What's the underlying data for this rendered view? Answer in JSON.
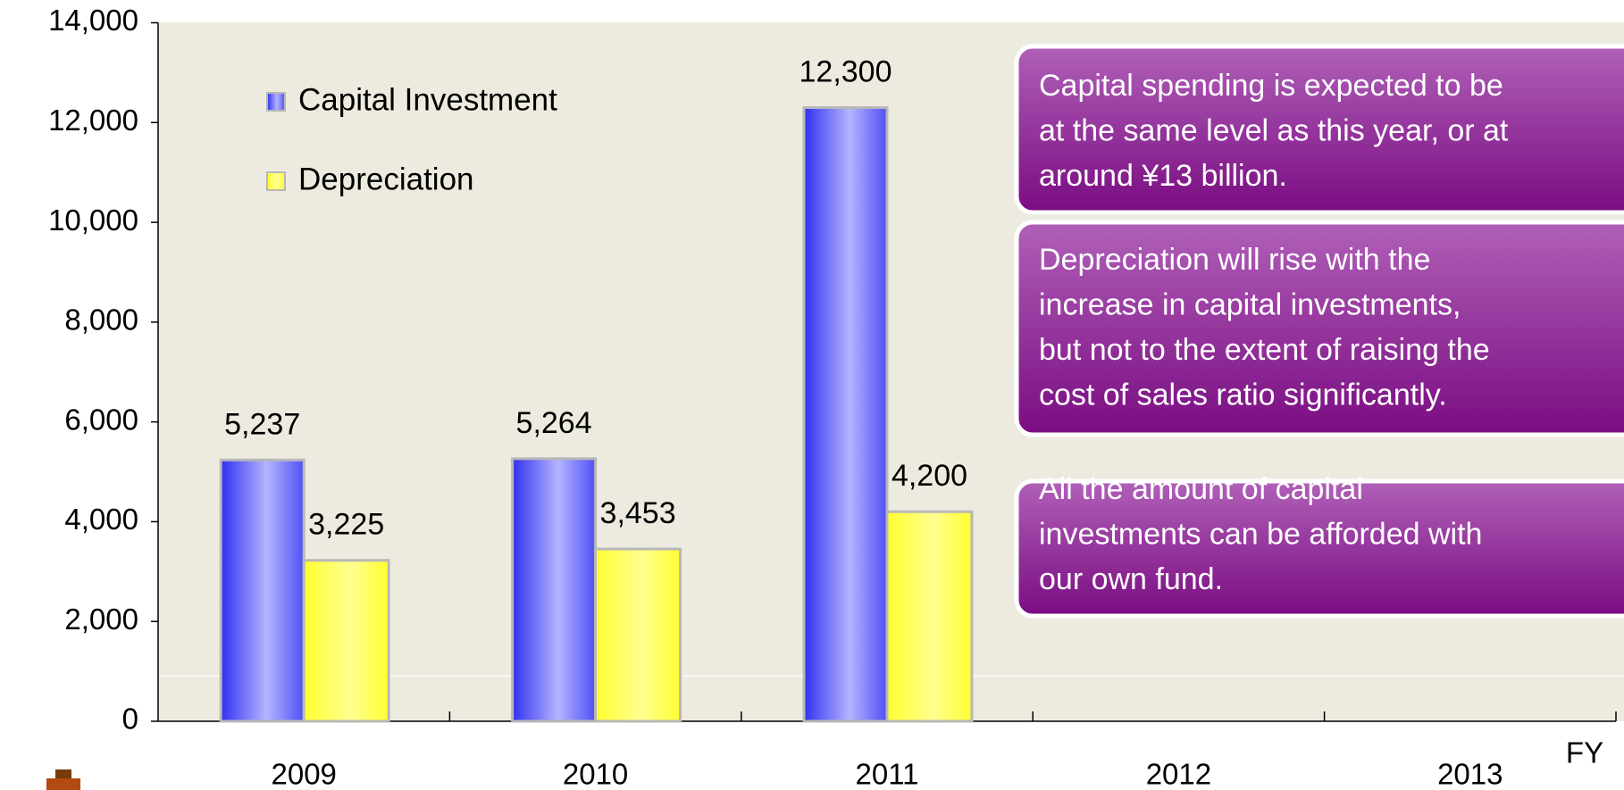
{
  "chart_data": {
    "type": "bar",
    "categories": [
      "2009",
      "2010",
      "2011",
      "2012",
      "2013"
    ],
    "x_label": "FY",
    "series": [
      {
        "name": "Capital Investment",
        "color": "#3b3bf5",
        "values": [
          5237,
          5264,
          12300,
          null,
          null
        ],
        "value_labels": [
          "5,237",
          "5,264",
          "12,300",
          null,
          null
        ]
      },
      {
        "name": "Depreciation",
        "color": "#ffff33",
        "values": [
          3225,
          3453,
          4200,
          null,
          null
        ],
        "value_labels": [
          "3,225",
          "3,453",
          "4,200",
          null,
          null
        ]
      }
    ],
    "ylim": [
      0,
      14000
    ],
    "yticks": [
      0,
      {
        "value": 2000,
        "label": "2,000"
      },
      {
        "value": 4000,
        "label": "4,000"
      },
      {
        "value": 6000,
        "label": "6,000"
      },
      {
        "value": 8000,
        "label": "8,000"
      },
      {
        "value": 10000,
        "label": "10,000"
      },
      {
        "value": 12000,
        "label": "12,000"
      },
      {
        "value": 14000,
        "label": "14,000"
      }
    ],
    "annotations": [
      {
        "lines": [
          "Capital spending is expected to be",
          "at the same level as this year, or at",
          "around ¥13 billion."
        ]
      },
      {
        "lines": [
          "Depreciation will rise with the",
          "increase in capital investments,",
          "but not to the extent of raising the",
          "cost of sales ratio significantly."
        ]
      },
      {
        "lines": [
          "All the amount of capital",
          "investments can be afforded with",
          "our own fund."
        ]
      }
    ]
  }
}
